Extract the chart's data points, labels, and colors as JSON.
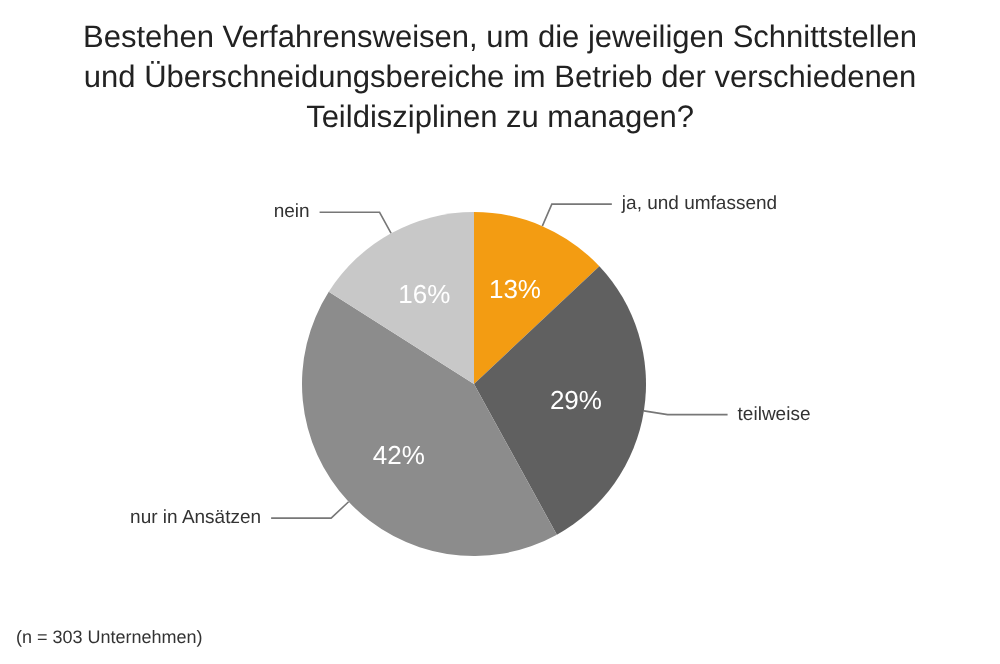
{
  "chart_data": {
    "type": "pie",
    "title": "Bestehen Verfahrensweisen, um die jeweiligen Schnittstellen\nund Überschneidungsbereiche im Betrieb der verschiedenen\nTeildisziplinen zu managen?",
    "categories": [
      "ja, und umfassend",
      "teilweise",
      "nur in Ansätzen",
      "nein"
    ],
    "values": [
      13,
      29,
      42,
      16
    ],
    "value_labels": [
      "13%",
      "29%",
      "42%",
      "16%"
    ],
    "colors": [
      "#f39c12",
      "#606060",
      "#8c8c8c",
      "#c8c8c8"
    ],
    "legend": false,
    "annotations": [
      "(n = 303 Unternehmen)"
    ]
  }
}
